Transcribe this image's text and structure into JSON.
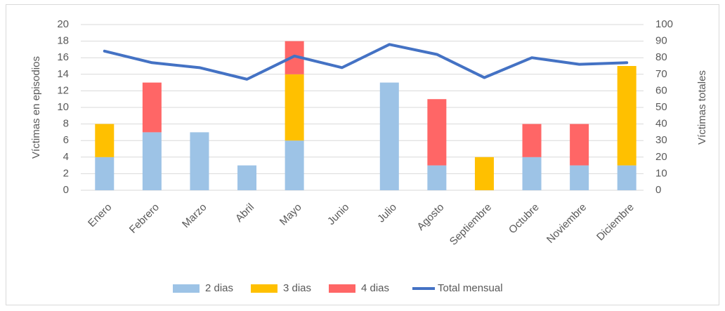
{
  "chart_data": {
    "type": "bar",
    "y_label": "Víctimas en episodios",
    "y2_label": "Víctimas totales",
    "categories": [
      "Enero",
      "Febrero",
      "Marzo",
      "Abril",
      "Mayo",
      "Junio",
      "Julio",
      "Agosto",
      "Septiembre",
      "Octubre",
      "Noviembre",
      "Diciembre"
    ],
    "series": [
      {
        "name": "2 dias",
        "color": "#9dc3e6",
        "values": [
          4,
          7,
          7,
          3,
          6,
          0,
          13,
          3,
          0,
          4,
          3,
          3
        ]
      },
      {
        "name": "3 dias",
        "color": "#ffc000",
        "values": [
          4,
          0,
          0,
          0,
          8,
          0,
          0,
          0,
          4,
          0,
          0,
          12
        ]
      },
      {
        "name": "4 dias",
        "color": "#ff6666",
        "values": [
          0,
          6,
          0,
          0,
          4,
          0,
          0,
          8,
          0,
          4,
          5,
          0
        ]
      },
      {
        "name": "Total mensual",
        "color": "#4472c4",
        "type": "line",
        "axis": "y2",
        "values": [
          84,
          77,
          74,
          67,
          81,
          74,
          88,
          82,
          68,
          80,
          76,
          77
        ]
      }
    ],
    "stacked": true,
    "ylim": [
      0,
      20
    ],
    "yticks": [
      0,
      2,
      4,
      6,
      8,
      10,
      12,
      14,
      16,
      18,
      20
    ],
    "y2lim": [
      0,
      100
    ],
    "y2ticks": [
      0,
      10,
      20,
      30,
      40,
      50,
      60,
      70,
      80,
      90,
      100
    ],
    "grid": true,
    "legend": "bottom"
  }
}
